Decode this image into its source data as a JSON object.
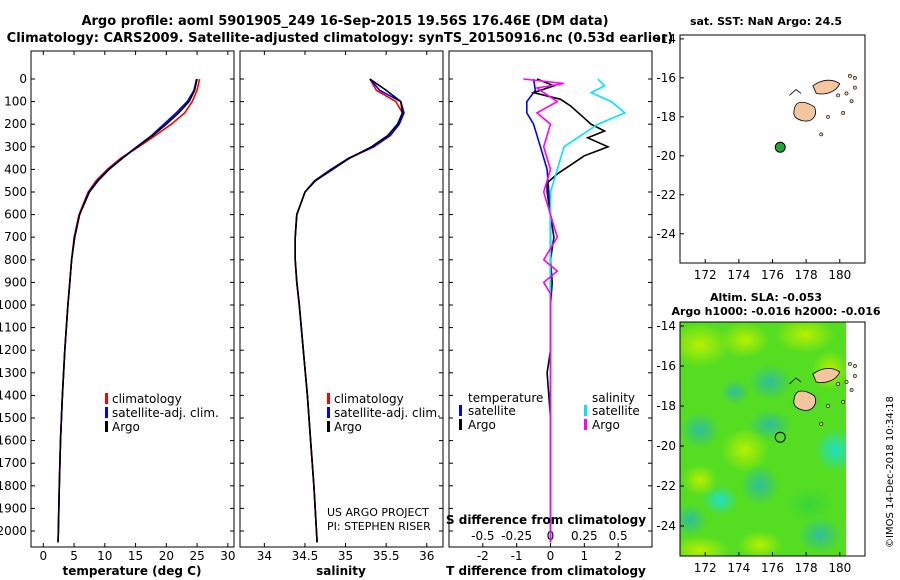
{
  "header": {
    "title_line1": "Argo profile: aoml 5901905_249 16-Sep-2015 19.56S 176.46E (DM data)",
    "title_line2": "Climatology: CARS2009. Satellite-adjusted climatology: synTS_20150916.nc (0.53d earlier)"
  },
  "credits": {
    "project": "US ARGO PROJECT",
    "pi": "PI: STEPHEN RISER",
    "imos": "©IMOS 14-Dec-2018 10:34:18"
  },
  "colors": {
    "climatology": "#ff0000",
    "satellite_clim": "#0000ff",
    "argo": "#000000",
    "salinity_satellite": "#00e5ff",
    "salinity_argo": "#ff00ff",
    "land": "#f4c6a0",
    "float_marker": "#1fa83a"
  },
  "chart_data": [
    {
      "type": "line",
      "id": "temperature",
      "xlabel": "temperature (deg C)",
      "ylabel": "",
      "xlim": [
        -2,
        31
      ],
      "ylim": [
        2050,
        0
      ],
      "xticks": [
        0,
        5,
        10,
        15,
        20,
        25,
        30
      ],
      "yticks": [
        0,
        100,
        200,
        300,
        400,
        500,
        600,
        700,
        800,
        900,
        1000,
        1100,
        1200,
        1300,
        1400,
        1500,
        1600,
        1700,
        1800,
        1900,
        2000
      ],
      "ytick_labels": [
        "0",
        "100",
        "200",
        "300",
        "400",
        "500",
        "600",
        "700",
        "800",
        "900",
        "1000",
        "1100",
        "1200",
        "1300",
        "1400",
        "1500",
        "1600",
        "1700",
        "1800",
        "1900",
        "2000"
      ],
      "legend": [
        "climatology",
        "satellite-adj. clim.",
        "Argo"
      ],
      "legend_placement": "bottom-right",
      "series": [
        {
          "name": "climatology",
          "depth": [
            0,
            50,
            100,
            150,
            200,
            250,
            300,
            350,
            400,
            450,
            500,
            600,
            700,
            800,
            900,
            1000,
            1200,
            1400,
            1600,
            1800,
            2050
          ],
          "values": [
            25.4,
            25.0,
            24.2,
            23.0,
            20.8,
            18.2,
            15.5,
            12.6,
            10.4,
            8.6,
            7.3,
            5.8,
            5.0,
            4.6,
            4.3,
            4.0,
            3.5,
            3.1,
            2.8,
            2.6,
            2.4
          ]
        },
        {
          "name": "satellite-adj. clim.",
          "depth": [
            0,
            50,
            100,
            150,
            200,
            250,
            300,
            350,
            400,
            450,
            500,
            600,
            700,
            800,
            900,
            1000,
            1200,
            1400,
            1600,
            1800,
            2050
          ],
          "values": [
            24.9,
            24.5,
            23.4,
            21.6,
            19.6,
            17.6,
            15.2,
            12.8,
            10.6,
            8.8,
            7.4,
            5.9,
            5.1,
            4.6,
            4.3,
            4.0,
            3.5,
            3.1,
            2.8,
            2.6,
            2.4
          ]
        },
        {
          "name": "Argo",
          "depth": [
            0,
            50,
            100,
            150,
            200,
            250,
            300,
            350,
            400,
            450,
            500,
            600,
            700,
            800,
            900,
            1000,
            1200,
            1400,
            1600,
            1800,
            2050
          ],
          "values": [
            25.0,
            24.6,
            23.7,
            22.0,
            20.0,
            17.8,
            15.3,
            12.9,
            10.7,
            8.9,
            7.5,
            5.9,
            5.1,
            4.6,
            4.3,
            4.0,
            3.5,
            3.1,
            2.8,
            2.6,
            2.4
          ]
        }
      ]
    },
    {
      "type": "line",
      "id": "salinity",
      "xlabel": "salinity",
      "xlim": [
        33.7,
        36.2
      ],
      "ylim": [
        2050,
        0
      ],
      "xticks": [
        34,
        34.5,
        35,
        35.5,
        36
      ],
      "legend": [
        "climatology",
        "satellite-adj. clim.",
        "Argo"
      ],
      "legend_placement": "bottom-right",
      "series": [
        {
          "name": "climatology",
          "depth": [
            0,
            50,
            100,
            150,
            200,
            250,
            300,
            350,
            400,
            450,
            500,
            600,
            700,
            800,
            900,
            1000,
            1200,
            1400,
            1600,
            1800,
            2050
          ],
          "values": [
            35.3,
            35.38,
            35.62,
            35.7,
            35.66,
            35.55,
            35.35,
            35.05,
            34.82,
            34.62,
            34.5,
            34.4,
            34.38,
            34.38,
            34.4,
            34.43,
            34.48,
            34.53,
            34.57,
            34.61,
            34.65
          ]
        },
        {
          "name": "satellite-adj. clim.",
          "depth": [
            0,
            50,
            100,
            150,
            200,
            250,
            300,
            350,
            400,
            450,
            500,
            600,
            700,
            800,
            900,
            1000,
            1200,
            1400,
            1600,
            1800,
            2050
          ],
          "values": [
            35.3,
            35.42,
            35.68,
            35.72,
            35.66,
            35.55,
            35.34,
            35.04,
            34.82,
            34.62,
            34.5,
            34.4,
            34.38,
            34.38,
            34.4,
            34.43,
            34.48,
            34.53,
            34.57,
            34.61,
            34.65
          ]
        },
        {
          "name": "Argo",
          "depth": [
            0,
            50,
            100,
            150,
            200,
            250,
            300,
            350,
            400,
            450,
            500,
            600,
            700,
            800,
            900,
            1000,
            1200,
            1400,
            1600,
            1800,
            2050
          ],
          "values": [
            35.3,
            35.5,
            35.68,
            35.7,
            35.64,
            35.52,
            35.32,
            35.05,
            34.84,
            34.63,
            34.5,
            34.4,
            34.38,
            34.38,
            34.4,
            34.43,
            34.48,
            34.53,
            34.57,
            34.61,
            34.65
          ]
        }
      ]
    },
    {
      "type": "line",
      "id": "differences",
      "xlabel": "T difference from climatology",
      "xlabel_top": "S difference from climatology",
      "xlim": [
        -3,
        3
      ],
      "ylim": [
        2050,
        0
      ],
      "xticks": [
        -2,
        -1,
        0,
        1,
        2
      ],
      "s_ticks": [
        -0.5,
        -0.25,
        0,
        0.25,
        0.5
      ],
      "s_tick_labels": [
        "-0.5",
        "-0.25",
        "0",
        "0.25",
        "0.5"
      ],
      "legend_temperature_title": "temperature",
      "legend_salinity_title": "salinity",
      "legend": [
        "satellite",
        "Argo",
        "satellite",
        "Argo"
      ],
      "legend_placement": "bottom",
      "series": [
        {
          "name": "satellite",
          "group": "temperature",
          "depth": [
            0,
            50,
            100,
            150,
            200,
            300,
            400,
            500,
            600,
            800,
            1000,
            1500,
            2050
          ],
          "values": [
            -0.5,
            -0.45,
            -0.7,
            -0.7,
            -0.5,
            -0.3,
            -0.1,
            -0.05,
            0,
            0,
            0,
            0,
            0
          ]
        },
        {
          "name": "Argo",
          "group": "temperature",
          "depth": [
            0,
            30,
            60,
            90,
            120,
            160,
            200,
            230,
            260,
            300,
            340,
            380,
            420,
            460,
            500,
            550,
            600,
            700,
            800,
            900,
            1000,
            1200,
            1300,
            1500,
            2050
          ],
          "values": [
            -0.4,
            0.1,
            -0.5,
            0.3,
            0.6,
            0.9,
            1.2,
            1.6,
            1.1,
            1.7,
            1.0,
            0.6,
            0.2,
            -0.1,
            -0.1,
            -0.05,
            0,
            0.1,
            0,
            0.05,
            0,
            0,
            -0.1,
            0,
            0
          ]
        },
        {
          "name": "satellite",
          "group": "salinity",
          "depth": [
            0,
            30,
            60,
            100,
            150,
            200,
            300,
            400,
            500,
            700,
            1000,
            1500,
            2050
          ],
          "values": [
            0.35,
            0.4,
            0.3,
            0.45,
            0.55,
            0.35,
            0.1,
            0.05,
            0,
            0,
            0,
            0,
            0
          ]
        },
        {
          "name": "Argo",
          "group": "salinity",
          "depth": [
            0,
            20,
            40,
            60,
            100,
            150,
            200,
            300,
            400,
            500,
            600,
            700,
            800,
            850,
            900,
            950,
            1000,
            1500,
            2050
          ],
          "values": [
            -0.2,
            0.1,
            -0.1,
            -0.05,
            0.05,
            -0.1,
            0,
            -0.05,
            0,
            -0.05,
            0,
            0.05,
            -0.05,
            0.05,
            -0.05,
            0,
            0,
            0,
            0
          ]
        }
      ]
    },
    {
      "type": "scatter",
      "id": "sst_map",
      "title": "sat. SST: NaN Argo: 24.5",
      "xlim": [
        170.5,
        181.5
      ],
      "ylim": [
        -25.5,
        -13.8
      ],
      "xticks": [
        172,
        174,
        176,
        178,
        180
      ],
      "yticks": [
        -14,
        -16,
        -18,
        -20,
        -22,
        -24
      ],
      "float": {
        "lon": 176.46,
        "lat": -19.56
      }
    },
    {
      "type": "heatmap",
      "id": "sla_map",
      "title": "Altim. SLA: -0.053",
      "subtitle": "Argo h1000: -0.016 h2000: -0.016",
      "xlim": [
        170.5,
        181.5
      ],
      "ylim": [
        -25.5,
        -13.8
      ],
      "xticks": [
        172,
        174,
        176,
        178,
        180
      ],
      "yticks": [
        -14,
        -16,
        -18,
        -20,
        -22,
        -24
      ],
      "float": {
        "lon": 176.46,
        "lat": -19.56
      }
    }
  ]
}
